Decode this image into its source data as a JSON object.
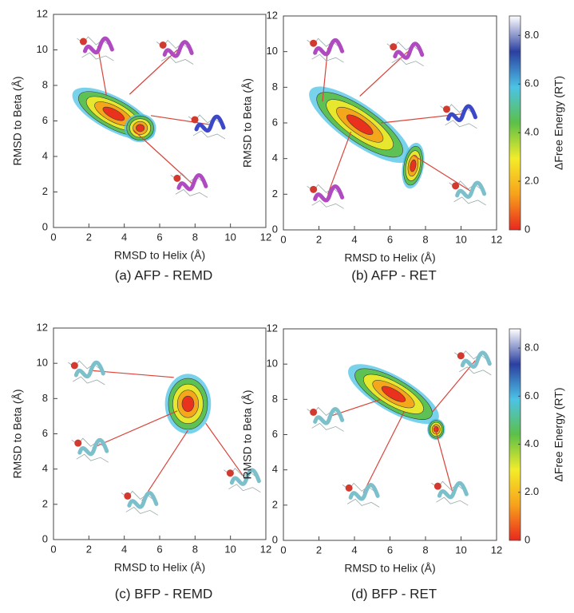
{
  "chart_data": [
    {
      "type": "contour",
      "caption": "(a) AFP - REMD",
      "x_label": "RMSD to Helix (Å)",
      "y_label": "RMSD to Beta (Å)",
      "xlim": [
        0,
        12
      ],
      "ylim": [
        0,
        12
      ],
      "xticks": [
        0,
        2,
        4,
        6,
        8,
        10,
        12
      ],
      "yticks": [
        0,
        2,
        4,
        6,
        8,
        10,
        12
      ],
      "colormap": [
        "#e8281e",
        "#f7a21b",
        "#f3ec2a",
        "#5cc048",
        "#4cc3e6",
        "#2b3fa0",
        "#ffffff"
      ]
    },
    {
      "type": "contour",
      "caption": "(b) AFP - RET",
      "x_label": "RMSD to Helix (Å)",
      "y_label": "RMSD to Beta (Å)",
      "xlim": [
        0,
        12
      ],
      "ylim": [
        0,
        12
      ],
      "xticks": [
        0,
        2,
        4,
        6,
        8,
        10,
        12
      ],
      "yticks": [
        0,
        2,
        4,
        6,
        8,
        10,
        12
      ],
      "colormap": [
        "#e8281e",
        "#f7a21b",
        "#f3ec2a",
        "#5cc048",
        "#4cc3e6",
        "#2b3fa0",
        "#ffffff"
      ],
      "colorbar": {
        "label": "ΔFree Energy (RT)",
        "lim": [
          0,
          8.8
        ],
        "ticks": [
          0,
          {
            "value": 2,
            "label": "2.0"
          },
          {
            "value": 4,
            "label": "4.0"
          },
          {
            "value": 6,
            "label": "6.0"
          },
          {
            "value": 8,
            "label": "8.0"
          }
        ]
      }
    },
    {
      "type": "contour",
      "caption": "(c) BFP - REMD",
      "x_label": "RMSD to Helix (Å)",
      "y_label": "RMSD to Beta (Å)",
      "xlim": [
        0,
        12
      ],
      "ylim": [
        0,
        12
      ],
      "xticks": [
        0,
        2,
        4,
        6,
        8,
        10,
        12
      ],
      "yticks": [
        0,
        2,
        4,
        6,
        8,
        10,
        12
      ],
      "colormap": [
        "#e8281e",
        "#f7a21b",
        "#f3ec2a",
        "#5cc048",
        "#4cc3e6",
        "#2b3fa0",
        "#ffffff"
      ]
    },
    {
      "type": "contour",
      "caption": "(d) BFP - RET",
      "x_label": "RMSD to Helix (Å)",
      "y_label": "RMSD to Beta (Å)",
      "xlim": [
        0,
        12
      ],
      "ylim": [
        0,
        12
      ],
      "xticks": [
        0,
        2,
        4,
        6,
        8,
        10,
        12
      ],
      "yticks": [
        0,
        2,
        4,
        6,
        8,
        10,
        12
      ],
      "colormap": [
        "#e8281e",
        "#f7a21b",
        "#f3ec2a",
        "#5cc048",
        "#4cc3e6",
        "#2b3fa0",
        "#ffffff"
      ],
      "colorbar": {
        "label": "ΔFree Energy (RT)",
        "lim": [
          0,
          8.8
        ],
        "ticks": [
          0,
          {
            "value": 2,
            "label": "2.0"
          },
          {
            "value": 4,
            "label": "4.0"
          },
          {
            "value": 6,
            "label": "6.0"
          },
          {
            "value": 8,
            "label": "8.0"
          }
        ]
      }
    }
  ]
}
